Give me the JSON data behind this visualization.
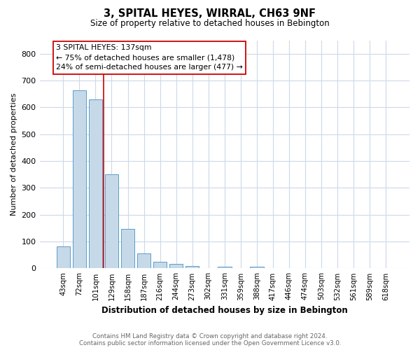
{
  "title": "3, SPITAL HEYES, WIRRAL, CH63 9NF",
  "subtitle": "Size of property relative to detached houses in Bebington",
  "xlabel": "Distribution of detached houses by size in Bebington",
  "ylabel": "Number of detached properties",
  "bar_labels": [
    "43sqm",
    "72sqm",
    "101sqm",
    "129sqm",
    "158sqm",
    "187sqm",
    "216sqm",
    "244sqm",
    "273sqm",
    "302sqm",
    "331sqm",
    "359sqm",
    "388sqm",
    "417sqm",
    "446sqm",
    "474sqm",
    "503sqm",
    "532sqm",
    "561sqm",
    "589sqm",
    "618sqm"
  ],
  "bar_values": [
    82,
    663,
    630,
    350,
    148,
    57,
    25,
    17,
    8,
    0,
    7,
    0,
    6,
    0,
    0,
    0,
    0,
    0,
    0,
    0,
    0
  ],
  "bar_color": "#c6d9e9",
  "bar_edge_color": "#5a9ec9",
  "annotation_title": "3 SPITAL HEYES: 137sqm",
  "annotation_line1": "← 75% of detached houses are smaller (1,478)",
  "annotation_line2": "24% of semi-detached houses are larger (477) →",
  "vline_color": "#cc0000",
  "annotation_box_edge_color": "#cc0000",
  "vline_position": 2.5,
  "ylim": [
    0,
    850
  ],
  "yticks": [
    0,
    100,
    200,
    300,
    400,
    500,
    600,
    700,
    800
  ],
  "footer_line1": "Contains HM Land Registry data © Crown copyright and database right 2024.",
  "footer_line2": "Contains public sector information licensed under the Open Government Licence v3.0.",
  "background_color": "#ffffff",
  "grid_color": "#ccd9e8"
}
